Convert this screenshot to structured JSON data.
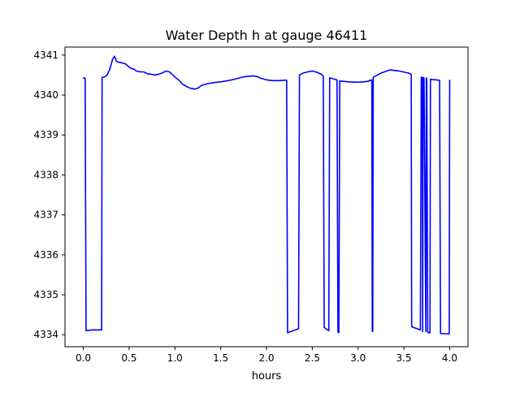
{
  "chart_data": {
    "type": "line",
    "title": "Water Depth h at gauge 46411",
    "xlabel": "hours",
    "ylabel": "",
    "xlim": [
      -0.2,
      4.2
    ],
    "ylim": [
      4333.7,
      4341.2
    ],
    "grid": false,
    "xticks": [
      0.0,
      0.5,
      1.0,
      1.5,
      2.0,
      2.5,
      3.0,
      3.5,
      4.0
    ],
    "xtick_labels": [
      "0.0",
      "0.5",
      "1.0",
      "1.5",
      "2.0",
      "2.5",
      "3.0",
      "3.5",
      "4.0"
    ],
    "yticks": [
      4334,
      4335,
      4336,
      4337,
      4338,
      4339,
      4340,
      4341
    ],
    "ytick_labels": [
      "4334",
      "4335",
      "4336",
      "4337",
      "4338",
      "4339",
      "4340",
      "4341"
    ],
    "series": [
      {
        "color": "#0000ff",
        "x": [
          0.0,
          0.02,
          0.03,
          0.06,
          0.1,
          0.15,
          0.2,
          0.205,
          0.23,
          0.26,
          0.29,
          0.32,
          0.34,
          0.36,
          0.38,
          0.4,
          0.43,
          0.46,
          0.49,
          0.52,
          0.55,
          0.58,
          0.62,
          0.66,
          0.7,
          0.74,
          0.78,
          0.82,
          0.86,
          0.9,
          0.94,
          0.98,
          1.0,
          1.04,
          1.08,
          1.12,
          1.17,
          1.22,
          1.25,
          1.29,
          1.35,
          1.42,
          1.5,
          1.58,
          1.66,
          1.74,
          1.8,
          1.86,
          1.9,
          1.94,
          2.0,
          2.06,
          2.12,
          2.2,
          2.22,
          2.23,
          2.35,
          2.36,
          2.4,
          2.45,
          2.5,
          2.55,
          2.6,
          2.62,
          2.63,
          2.68,
          2.69,
          2.77,
          2.78,
          2.79,
          2.8,
          2.81,
          2.9,
          3.0,
          3.1,
          3.15,
          3.155,
          3.16,
          3.165,
          3.17,
          3.25,
          3.35,
          3.45,
          3.55,
          3.58,
          3.585,
          3.68,
          3.69,
          3.7,
          3.705,
          3.71,
          3.72,
          3.74,
          3.745,
          3.75,
          3.76,
          3.785,
          3.79,
          3.8,
          3.89,
          3.9,
          3.91,
          3.995,
          4.0
        ],
        "y": [
          4340.43,
          4340.42,
          4334.1,
          4334.11,
          4334.12,
          4334.12,
          4334.12,
          4340.44,
          4340.45,
          4340.5,
          4340.65,
          4340.9,
          4340.97,
          4340.85,
          4340.82,
          4340.82,
          4340.8,
          4340.78,
          4340.72,
          4340.67,
          4340.65,
          4340.6,
          4340.58,
          4340.58,
          4340.53,
          4340.52,
          4340.5,
          4340.52,
          4340.55,
          4340.6,
          4340.58,
          4340.5,
          4340.45,
          4340.38,
          4340.28,
          4340.22,
          4340.17,
          4340.15,
          4340.17,
          4340.24,
          4340.28,
          4340.31,
          4340.33,
          4340.36,
          4340.4,
          4340.45,
          4340.47,
          4340.48,
          4340.46,
          4340.42,
          4340.38,
          4340.36,
          4340.36,
          4340.37,
          4340.37,
          4334.05,
          4334.15,
          4340.5,
          4340.55,
          4340.58,
          4340.6,
          4340.57,
          4340.52,
          4340.48,
          4334.18,
          4334.1,
          4340.43,
          4340.38,
          4334.07,
          4334.05,
          4340.36,
          4340.35,
          4340.33,
          4340.32,
          4340.34,
          4340.38,
          4334.1,
          4334.08,
          4340.44,
          4340.45,
          4340.55,
          4340.63,
          4340.6,
          4340.55,
          4340.52,
          4334.2,
          4334.12,
          4340.45,
          4340.43,
          4334.08,
          4340.44,
          4340.42,
          4334.08,
          4340.43,
          4340.4,
          4334.06,
          4334.05,
          4340.4,
          4340.39,
          4340.37,
          4334.03,
          4334.03,
          4334.02,
          4340.37
        ]
      }
    ]
  }
}
